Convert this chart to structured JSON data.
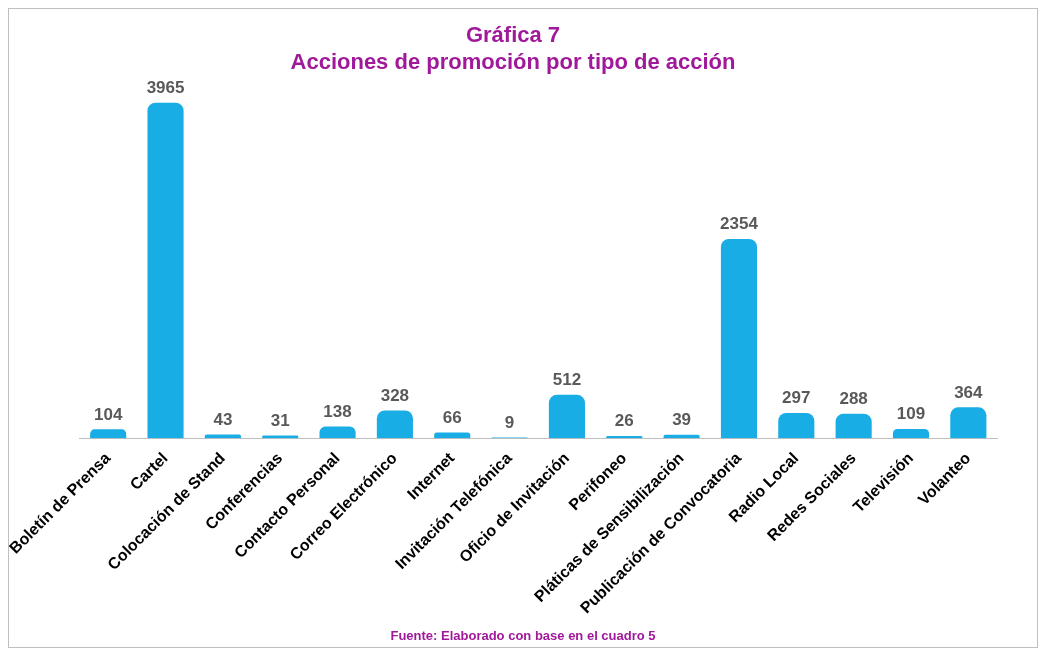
{
  "chart_data": {
    "type": "bar",
    "title": [
      "Gráfica 7",
      "Acciones de promoción por tipo de acción"
    ],
    "categories": [
      "Boletín de Prensa",
      "Cartel",
      "Colocación de Stand",
      "Conferencias",
      "Contacto Personal",
      "Correo Electrónico",
      "Internet",
      "Invitación Telefónica",
      "Oficio de Invitación",
      "Perifoneo",
      "Pláticas de Sensibilización",
      "Publicación de Convocatoria",
      "Radio Local",
      "Redes Sociales",
      "Televisión",
      "Volanteo"
    ],
    "values": [
      104,
      3965,
      43,
      31,
      138,
      328,
      66,
      9,
      512,
      26,
      39,
      2354,
      297,
      288,
      109,
      364
    ],
    "color": "#19ade6",
    "data_labels": true,
    "grid": false,
    "legend": false,
    "annotations": [
      "Fuente: Elaborado con base en el cuadro 5"
    ]
  }
}
